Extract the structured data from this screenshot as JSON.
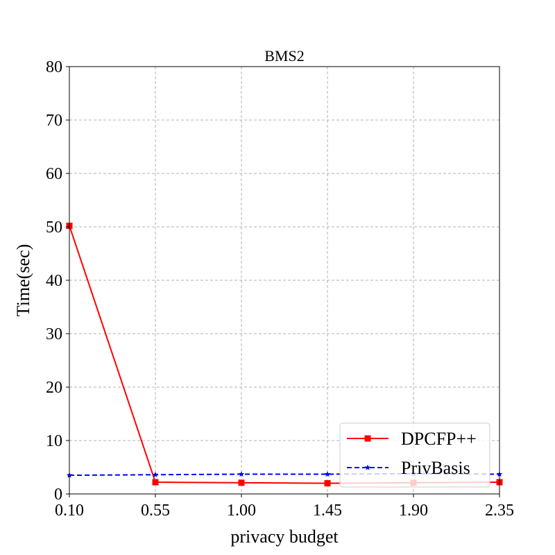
{
  "chart_data": {
    "type": "line",
    "title": "BMS2",
    "xlabel": "privacy budget",
    "ylabel": "Time(sec)",
    "x": [
      0.1,
      0.55,
      1.0,
      1.45,
      1.9,
      2.35
    ],
    "x_tick_labels": [
      "0.10",
      "0.55",
      "1.00",
      "1.45",
      "1.90",
      "2.35"
    ],
    "xlim": [
      0.1,
      2.35
    ],
    "ylim": [
      0,
      80
    ],
    "y_ticks": [
      0,
      10,
      20,
      30,
      40,
      50,
      60,
      70,
      80
    ],
    "y_tick_labels": [
      "0",
      "10",
      "20",
      "30",
      "40",
      "50",
      "60",
      "70",
      "80"
    ],
    "grid": true,
    "legend_position": "bottom-right",
    "series": [
      {
        "name": "DPCFP++",
        "color": "#ff0000",
        "line_style": "solid",
        "marker": "square",
        "values": [
          50.2,
          2.2,
          2.1,
          2.0,
          2.1,
          2.2
        ]
      },
      {
        "name": "PrivBasis",
        "color": "#0000ff",
        "line_style": "dashed",
        "marker": "star",
        "values": [
          3.5,
          3.6,
          3.7,
          3.7,
          3.8,
          3.7
        ]
      }
    ]
  }
}
